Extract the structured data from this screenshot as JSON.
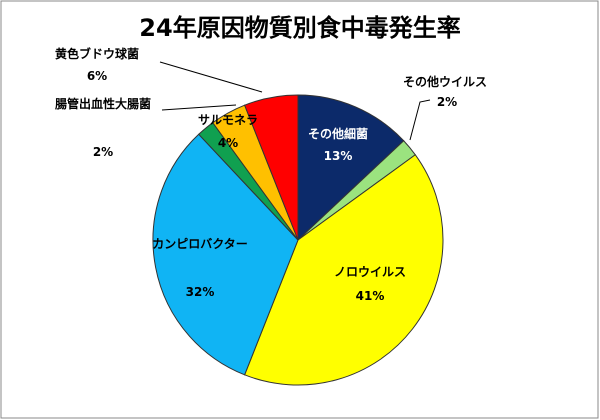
{
  "chart_data": {
    "type": "pie",
    "title": "24年原因物質別食中毒発生率",
    "categories": [
      "その他細菌",
      "その他ウイルス",
      "ノロウイルス",
      "カンピロバクター",
      "腸管出血性大腸菌",
      "サルモネラ",
      "黄色ブドウ球菌"
    ],
    "values": [
      13,
      2,
      41,
      32,
      2,
      4,
      6
    ],
    "value_labels": [
      "13%",
      "2%",
      "41%",
      "32%",
      "2%",
      "4%",
      "6%"
    ],
    "colors": [
      "#0c2a6a",
      "#9be37f",
      "#ffff00",
      "#10b4f4",
      "#10a050",
      "#ffc000",
      "#ff0000"
    ]
  }
}
